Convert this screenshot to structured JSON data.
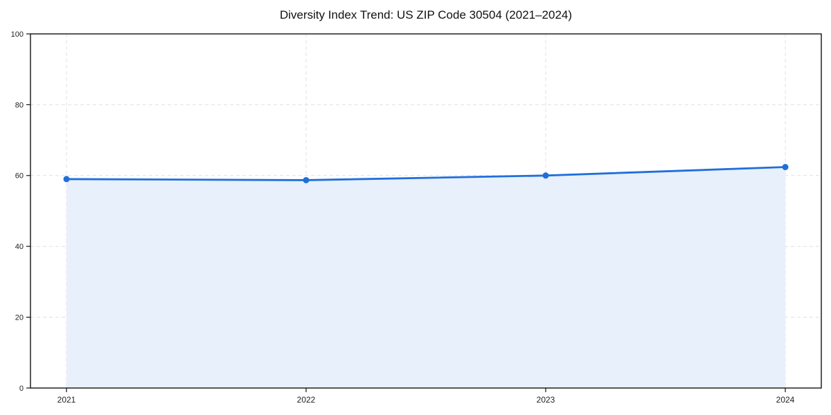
{
  "figure": {
    "background": "#ffffff"
  },
  "chart_data": {
    "type": "line",
    "subtype": "area-filled",
    "title": "Diversity Index Trend: US ZIP Code 30504 (2021–2024)",
    "categories": [
      "2021",
      "2022",
      "2023",
      "2024"
    ],
    "series": [
      {
        "name": "Diversity Index",
        "values": [
          59.0,
          58.7,
          60.0,
          62.4
        ]
      }
    ],
    "xlabel": "",
    "ylabel": "",
    "ylim": [
      0,
      100
    ],
    "yticks": [
      0,
      20,
      40,
      60,
      80,
      100
    ],
    "grid": true,
    "grid_style": "dashed",
    "legend": false,
    "markers": "circle",
    "colors": {
      "line": "#1f6fdb",
      "marker": "#1f6fdb",
      "fill": "#e8f0fb",
      "grid": "#e0e0e0",
      "spine": "#111111",
      "tick": "#111111",
      "tick_label": "#222222",
      "title": "#111111",
      "background": "#ffffff"
    }
  }
}
